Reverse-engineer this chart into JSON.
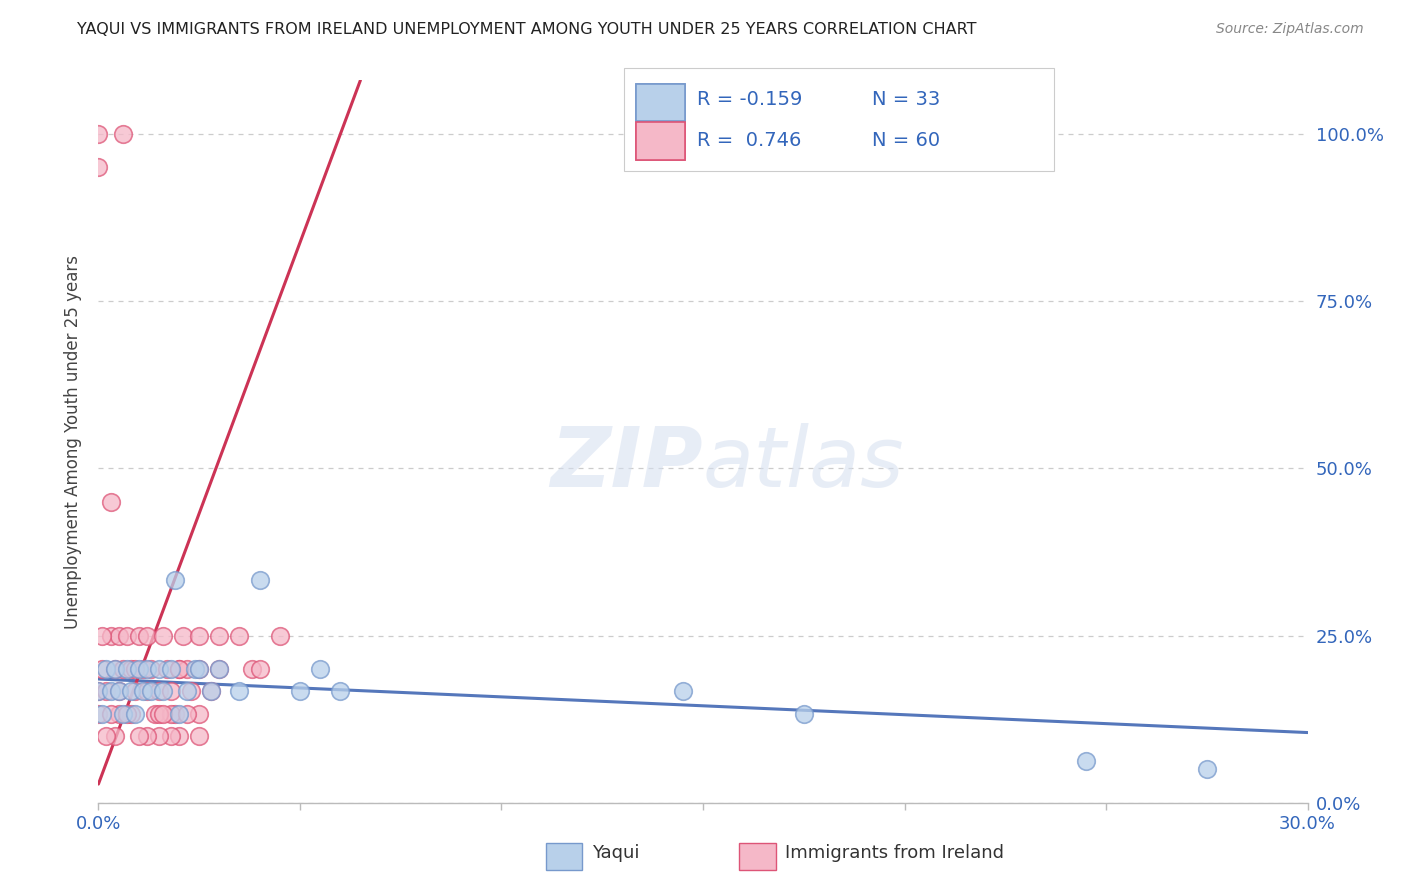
{
  "title": "YAQUI VS IMMIGRANTS FROM IRELAND UNEMPLOYMENT AMONG YOUTH UNDER 25 YEARS CORRELATION CHART",
  "source": "Source: ZipAtlas.com",
  "ylabel": "Unemployment Among Youth under 25 years",
  "xlim": [
    0.0,
    0.3
  ],
  "ylim": [
    0.0,
    1.08
  ],
  "blue_face": "#b8d0ea",
  "pink_face": "#f5b8c8",
  "blue_edge": "#7799cc",
  "pink_edge": "#dd5577",
  "blue_line": "#5577bb",
  "pink_line": "#cc3355",
  "watermark_color": "#d5dff0",
  "legend_text_color": "#3366bb",
  "legend_r1": "R = -0.159",
  "legend_n1": "N = 33",
  "legend_r2": "R =  0.746",
  "legend_n2": "N = 60",
  "yaqui_x": [
    0.0,
    0.001,
    0.002,
    0.003,
    0.004,
    0.005,
    0.006,
    0.007,
    0.008,
    0.009,
    0.01,
    0.011,
    0.012,
    0.013,
    0.015,
    0.016,
    0.018,
    0.02,
    0.022,
    0.024,
    0.025,
    0.028,
    0.03,
    0.035,
    0.04,
    0.05,
    0.055,
    0.06,
    0.019,
    0.145,
    0.175,
    0.245,
    0.275
  ],
  "yaqui_y": [
    0.167,
    0.133,
    0.2,
    0.167,
    0.2,
    0.167,
    0.133,
    0.2,
    0.167,
    0.133,
    0.2,
    0.167,
    0.2,
    0.167,
    0.2,
    0.167,
    0.2,
    0.133,
    0.167,
    0.2,
    0.2,
    0.167,
    0.2,
    0.167,
    0.333,
    0.167,
    0.2,
    0.167,
    0.333,
    0.167,
    0.133,
    0.063,
    0.05
  ],
  "ireland_x": [
    0.0,
    0.0,
    0.001,
    0.002,
    0.003,
    0.004,
    0.005,
    0.005,
    0.006,
    0.007,
    0.008,
    0.009,
    0.01,
    0.011,
    0.012,
    0.012,
    0.013,
    0.014,
    0.015,
    0.016,
    0.017,
    0.018,
    0.019,
    0.02,
    0.021,
    0.022,
    0.023,
    0.025,
    0.025,
    0.028,
    0.03,
    0.035,
    0.038,
    0.04,
    0.045,
    0.003,
    0.0,
    0.0,
    0.006,
    0.03,
    0.025,
    0.02,
    0.025,
    0.018,
    0.015,
    0.008,
    0.02,
    0.018,
    0.022,
    0.015,
    0.012,
    0.01,
    0.005,
    0.004,
    0.003,
    0.002,
    0.001,
    0.007,
    0.009,
    0.016
  ],
  "ireland_y": [
    0.167,
    0.133,
    0.2,
    0.167,
    0.25,
    0.2,
    0.25,
    0.167,
    0.2,
    0.25,
    0.2,
    0.167,
    0.25,
    0.2,
    0.25,
    0.167,
    0.2,
    0.133,
    0.167,
    0.25,
    0.2,
    0.167,
    0.133,
    0.2,
    0.25,
    0.2,
    0.167,
    0.25,
    0.2,
    0.167,
    0.25,
    0.25,
    0.2,
    0.2,
    0.25,
    0.45,
    0.95,
    1.0,
    1.0,
    0.2,
    0.133,
    0.1,
    0.1,
    0.1,
    0.1,
    0.133,
    0.2,
    0.133,
    0.133,
    0.133,
    0.1,
    0.1,
    0.133,
    0.1,
    0.133,
    0.1,
    0.25,
    0.133,
    0.2,
    0.133
  ],
  "blue_line_x": [
    0.0,
    0.3
  ],
  "blue_line_y": [
    0.185,
    0.105
  ],
  "pink_line_x": [
    0.0,
    0.065
  ],
  "pink_line_y": [
    0.028,
    1.08
  ],
  "x_tick_vals": [
    0.0,
    0.05,
    0.1,
    0.15,
    0.2,
    0.25,
    0.3
  ],
  "y_tick_vals": [
    0.0,
    0.25,
    0.5,
    0.75,
    1.0
  ],
  "right_y_labels": [
    "0.0%",
    "25.0%",
    "50.0%",
    "75.0%",
    "100.0%"
  ]
}
